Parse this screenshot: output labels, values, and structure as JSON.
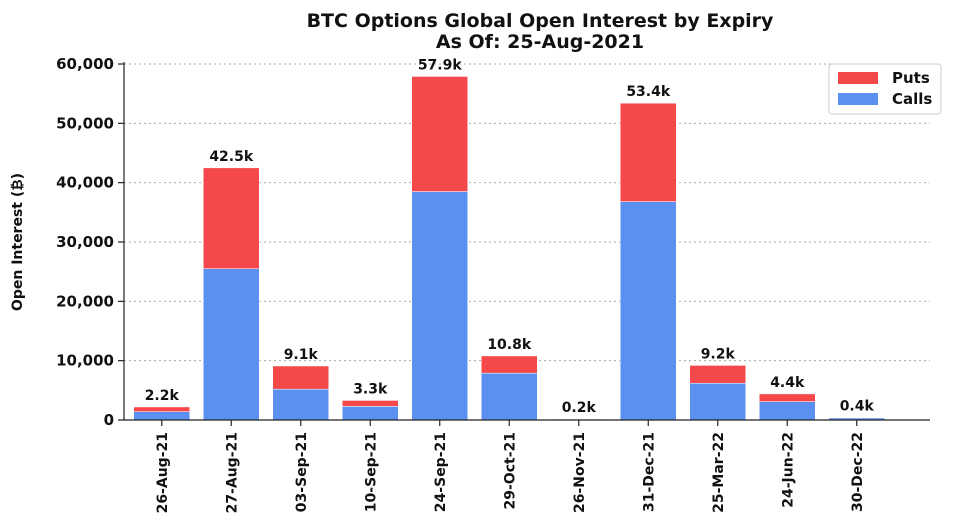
{
  "chart_data": {
    "type": "bar",
    "stacked": true,
    "title": "BTC Options Global Open Interest by Expiry",
    "subtitle": "As Of: 25-Aug-2021",
    "xlabel": "",
    "ylabel": "Open Interest (₿)",
    "ylim": [
      0,
      60000
    ],
    "yticks": [
      "0",
      "10,000",
      "20,000",
      "30,000",
      "40,000",
      "50,000",
      "60,000"
    ],
    "ytick_values": [
      0,
      10000,
      20000,
      30000,
      40000,
      50000,
      60000
    ],
    "grid": true,
    "legend_position": "top-right",
    "categories": [
      "26-Aug-21",
      "27-Aug-21",
      "03-Sep-21",
      "10-Sep-21",
      "24-Sep-21",
      "29-Oct-21",
      "26-Nov-21",
      "31-Dec-21",
      "25-Mar-22",
      "24-Jun-22",
      "30-Dec-22"
    ],
    "series": [
      {
        "name": "Calls",
        "color": "#5b8ff0",
        "values": [
          1400,
          25500,
          5200,
          2300,
          38500,
          7900,
          150,
          36800,
          6200,
          3100,
          350
        ]
      },
      {
        "name": "Puts",
        "color": "#f5484a",
        "values": [
          800,
          17000,
          3900,
          1000,
          19400,
          2900,
          50,
          16600,
          3000,
          1300,
          50
        ]
      }
    ],
    "totals_labels": [
      "2.2k",
      "42.5k",
      "9.1k",
      "3.3k",
      "57.9k",
      "10.8k",
      "0.2k",
      "53.4k",
      "9.2k",
      "4.4k",
      "0.4k"
    ]
  }
}
